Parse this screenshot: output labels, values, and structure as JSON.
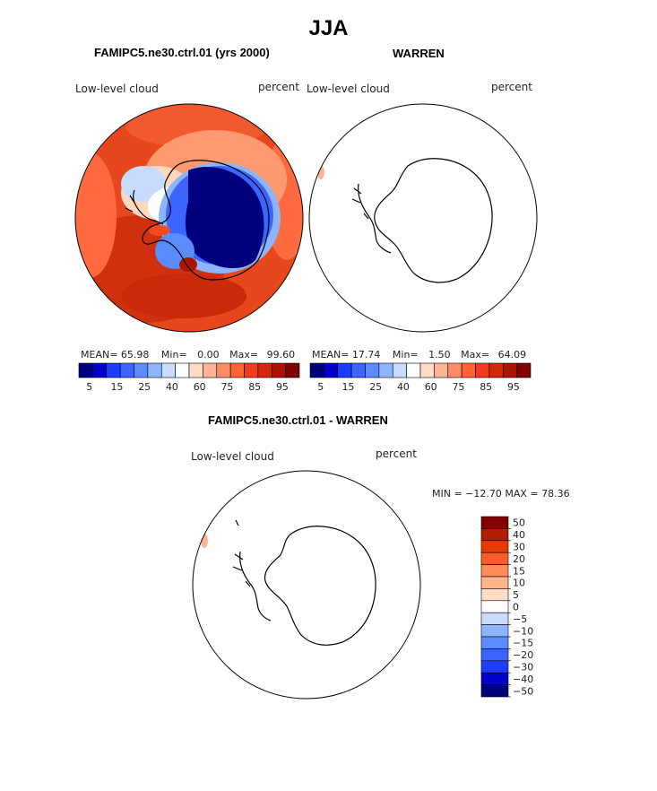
{
  "title": "JJA",
  "panels": [
    {
      "title": "FAMIPC5.ne30.ctrl.01 (yrs 2000)",
      "variable": "Low-level cloud",
      "units": "percent",
      "stats": {
        "mean_label": "MEAN=",
        "mean": "65.98",
        "min_label": "Min=",
        "min": "0.00",
        "max_label": "Max=",
        "max": "99.60"
      }
    },
    {
      "title": "WARREN",
      "variable": "Low-level cloud",
      "units": "percent",
      "stats": {
        "mean_label": "MEAN=",
        "mean": "17.74",
        "min_label": "Min=",
        "min": "1.50",
        "max_label": "Max=",
        "max": "64.09"
      }
    },
    {
      "title": "FAMIPC5.ne30.ctrl.01 - WARREN",
      "variable": "Low-level cloud",
      "units": "percent",
      "minmax_text": "MIN = −12.70 MAX =  78.36"
    }
  ],
  "chart_data": [
    {
      "type": "heatmap",
      "projection": "south-polar stereographic",
      "title": "FAMIPC5.ne30.ctrl.01 (yrs 2000)",
      "field": "Low-level cloud",
      "units": "percent",
      "mean": 65.98,
      "min": 0.0,
      "max": 99.6,
      "colorbar": {
        "orientation": "horizontal",
        "colors": [
          "#00007f",
          "#0000c8",
          "#1e3cff",
          "#3c64ff",
          "#5a8cff",
          "#8cb4ff",
          "#c8dcff",
          "#ffffff",
          "#ffdcc8",
          "#ffb496",
          "#ff8c64",
          "#ff6432",
          "#f03c1e",
          "#d2280a",
          "#aa1400",
          "#820000"
        ],
        "tick_labels": [
          "5",
          "15",
          "25",
          "40",
          "60",
          "75",
          "85",
          "95"
        ]
      }
    },
    {
      "type": "heatmap",
      "projection": "south-polar stereographic",
      "title": "WARREN",
      "field": "Low-level cloud",
      "units": "percent",
      "mean": 17.74,
      "min": 1.5,
      "max": 64.09,
      "colorbar": {
        "orientation": "horizontal",
        "colors": [
          "#00007f",
          "#0000c8",
          "#1e3cff",
          "#3c64ff",
          "#5a8cff",
          "#8cb4ff",
          "#c8dcff",
          "#ffffff",
          "#ffdcc8",
          "#ffb496",
          "#ff8c64",
          "#ff6432",
          "#f03c1e",
          "#d2280a",
          "#aa1400",
          "#820000"
        ],
        "tick_labels": [
          "5",
          "15",
          "25",
          "40",
          "60",
          "75",
          "85",
          "95"
        ]
      }
    },
    {
      "type": "heatmap",
      "projection": "south-polar stereographic",
      "title": "FAMIPC5.ne30.ctrl.01 - WARREN",
      "field": "Low-level cloud",
      "units": "percent",
      "min": -12.7,
      "max": 78.36,
      "colorbar": {
        "orientation": "vertical",
        "colors": [
          "#820000",
          "#b41e00",
          "#e63c00",
          "#ff5a28",
          "#ff8c5a",
          "#ffb48c",
          "#ffdcc8",
          "#ffffff",
          "#c8dcff",
          "#8cb4ff",
          "#5a8cff",
          "#3c64ff",
          "#1e3cff",
          "#0000c8",
          "#00007f"
        ],
        "tick_labels": [
          "50",
          "40",
          "30",
          "20",
          "15",
          "10",
          "5",
          "0",
          "−5",
          "−10",
          "−15",
          "−20",
          "−30",
          "−40",
          "−50"
        ]
      }
    }
  ]
}
